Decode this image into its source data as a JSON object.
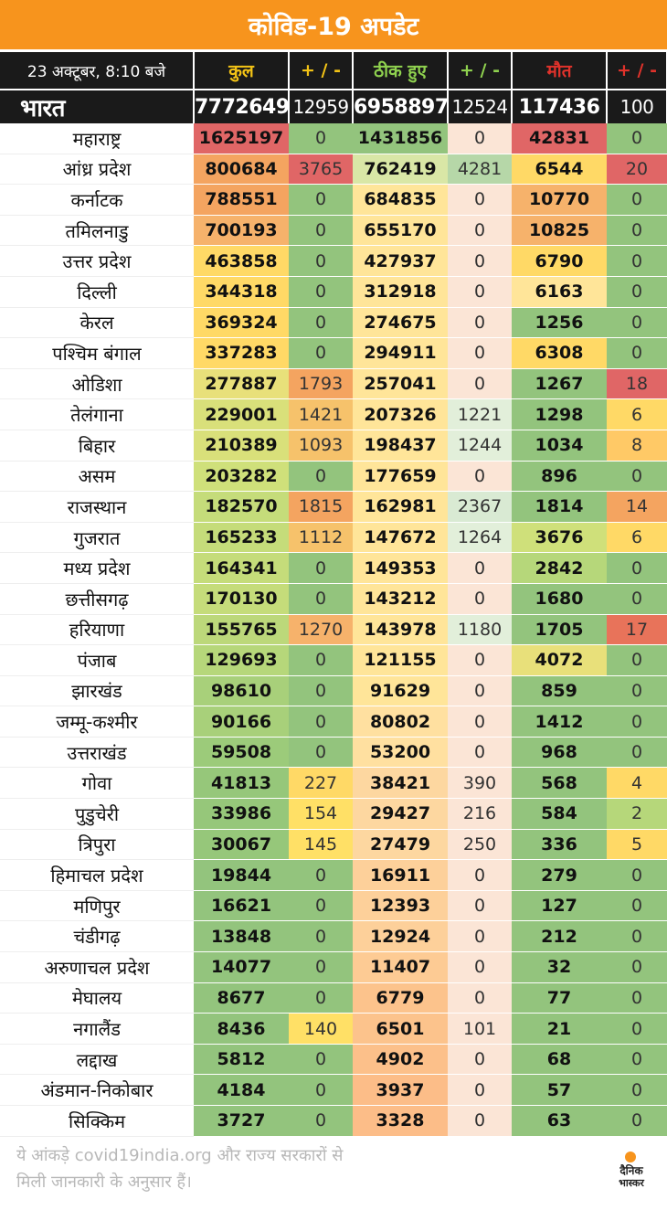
{
  "title": "कोविड-19 अपडेट",
  "header": {
    "date": "23 अक्टूबर, 8:10 बजे",
    "total": "कुल",
    "delta1": "+ / -",
    "recovered": "ठीक हुए",
    "delta2": "+ / -",
    "deaths": "मौत",
    "delta3": "+ / -"
  },
  "india": {
    "name": "भारत",
    "total": "7772649",
    "total_delta": "12959",
    "recovered": "6958897",
    "recovered_delta": "12524",
    "deaths": "117436",
    "deaths_delta": "100"
  },
  "colors": {
    "title_bg": "#f7941d",
    "header_bg": "#1a1a1a",
    "red": "#e06666",
    "orange": "#f4a460",
    "yellow": "#ffd966",
    "light_green": "#c5e0b4",
    "green": "#93c47d",
    "peach": "#fbe5d6"
  },
  "states": [
    {
      "name": "महाराष्ट्र",
      "total": "1625197",
      "total_delta": "0",
      "recovered": "1431856",
      "recovered_delta": "0",
      "deaths": "42831",
      "deaths_delta": "0",
      "c": [
        "#e06666",
        "#93c47d",
        "#93c47d",
        "#fbe5d6",
        "#e06666",
        "#93c47d"
      ]
    },
    {
      "name": "आंध्र प्रदेश",
      "total": "800684",
      "total_delta": "3765",
      "recovered": "762419",
      "recovered_delta": "4281",
      "deaths": "6544",
      "deaths_delta": "20",
      "c": [
        "#f4a460",
        "#e06666",
        "#d9e7a6",
        "#b6d7a8",
        "#ffd966",
        "#e06666"
      ]
    },
    {
      "name": "कर्नाटक",
      "total": "788551",
      "total_delta": "0",
      "recovered": "684835",
      "recovered_delta": "0",
      "deaths": "10770",
      "deaths_delta": "0",
      "c": [
        "#f4a460",
        "#93c47d",
        "#ffe599",
        "#fbe5d6",
        "#f6b26b",
        "#93c47d"
      ]
    },
    {
      "name": "तमिलनाडु",
      "total": "700193",
      "total_delta": "0",
      "recovered": "655170",
      "recovered_delta": "0",
      "deaths": "10825",
      "deaths_delta": "0",
      "c": [
        "#f6b26b",
        "#93c47d",
        "#ffe599",
        "#fbe5d6",
        "#f6b26b",
        "#93c47d"
      ]
    },
    {
      "name": "उत्तर प्रदेश",
      "total": "463858",
      "total_delta": "0",
      "recovered": "427937",
      "recovered_delta": "0",
      "deaths": "6790",
      "deaths_delta": "0",
      "c": [
        "#ffd966",
        "#93c47d",
        "#ffe599",
        "#fbe5d6",
        "#ffd966",
        "#93c47d"
      ]
    },
    {
      "name": "दिल्ली",
      "total": "344318",
      "total_delta": "0",
      "recovered": "312918",
      "recovered_delta": "0",
      "deaths": "6163",
      "deaths_delta": "0",
      "c": [
        "#ffd966",
        "#93c47d",
        "#ffe599",
        "#fbe5d6",
        "#ffe599",
        "#93c47d"
      ]
    },
    {
      "name": "केरल",
      "total": "369324",
      "total_delta": "0",
      "recovered": "274675",
      "recovered_delta": "0",
      "deaths": "1256",
      "deaths_delta": "0",
      "c": [
        "#ffd966",
        "#93c47d",
        "#ffe599",
        "#fbe5d6",
        "#93c47d",
        "#93c47d"
      ]
    },
    {
      "name": "पश्चिम बंगाल",
      "total": "337283",
      "total_delta": "0",
      "recovered": "294911",
      "recovered_delta": "0",
      "deaths": "6308",
      "deaths_delta": "0",
      "c": [
        "#ffd966",
        "#93c47d",
        "#ffe599",
        "#fbe5d6",
        "#ffd966",
        "#93c47d"
      ]
    },
    {
      "name": "ओडिशा",
      "total": "277887",
      "total_delta": "1793",
      "recovered": "257041",
      "recovered_delta": "0",
      "deaths": "1267",
      "deaths_delta": "18",
      "c": [
        "#e8e07a",
        "#f4a460",
        "#ffe599",
        "#fbe5d6",
        "#93c47d",
        "#e06666"
      ]
    },
    {
      "name": "तेलंगाना",
      "total": "229001",
      "total_delta": "1421",
      "recovered": "207326",
      "recovered_delta": "1221",
      "deaths": "1298",
      "deaths_delta": "6",
      "c": [
        "#d9e07a",
        "#f6c26b",
        "#ffe599",
        "#e2efda",
        "#93c47d",
        "#ffd966"
      ]
    },
    {
      "name": "बिहार",
      "total": "210389",
      "total_delta": "1093",
      "recovered": "198437",
      "recovered_delta": "1244",
      "deaths": "1034",
      "deaths_delta": "8",
      "c": [
        "#d9e07a",
        "#f6c26b",
        "#ffe599",
        "#e2efda",
        "#93c47d",
        "#ffc966"
      ]
    },
    {
      "name": "असम",
      "total": "203282",
      "total_delta": "0",
      "recovered": "177659",
      "recovered_delta": "0",
      "deaths": "896",
      "deaths_delta": "0",
      "c": [
        "#cfe07a",
        "#93c47d",
        "#ffe599",
        "#fbe5d6",
        "#93c47d",
        "#93c47d"
      ]
    },
    {
      "name": "राजस्थान",
      "total": "182570",
      "total_delta": "1815",
      "recovered": "162981",
      "recovered_delta": "2367",
      "deaths": "1814",
      "deaths_delta": "14",
      "c": [
        "#c5dc7a",
        "#f4a460",
        "#ffe599",
        "#d9ead3",
        "#93c47d",
        "#f4a460"
      ]
    },
    {
      "name": "गुजरात",
      "total": "165233",
      "total_delta": "1112",
      "recovered": "147672",
      "recovered_delta": "1264",
      "deaths": "3676",
      "deaths_delta": "6",
      "c": [
        "#c5dc7a",
        "#f6c26b",
        "#ffe599",
        "#e2efda",
        "#cfe07a",
        "#ffd966"
      ]
    },
    {
      "name": "मध्य प्रदेश",
      "total": "164341",
      "total_delta": "0",
      "recovered": "149353",
      "recovered_delta": "0",
      "deaths": "2842",
      "deaths_delta": "0",
      "c": [
        "#c5dc7a",
        "#93c47d",
        "#ffe599",
        "#fbe5d6",
        "#b6d77a",
        "#93c47d"
      ]
    },
    {
      "name": "छत्तीसगढ़",
      "total": "170130",
      "total_delta": "0",
      "recovered": "143212",
      "recovered_delta": "0",
      "deaths": "1680",
      "deaths_delta": "0",
      "c": [
        "#c5dc7a",
        "#93c47d",
        "#ffe599",
        "#fbe5d6",
        "#93c47d",
        "#93c47d"
      ]
    },
    {
      "name": "हरियाणा",
      "total": "155765",
      "total_delta": "1270",
      "recovered": "143978",
      "recovered_delta": "1180",
      "deaths": "1705",
      "deaths_delta": "17",
      "c": [
        "#bcd87a",
        "#f6b26b",
        "#ffe599",
        "#e2efda",
        "#93c47d",
        "#e8735a"
      ]
    },
    {
      "name": "पंजाब",
      "total": "129693",
      "total_delta": "0",
      "recovered": "121155",
      "recovered_delta": "0",
      "deaths": "4072",
      "deaths_delta": "0",
      "c": [
        "#b6d77a",
        "#93c47d",
        "#ffe599",
        "#fbe5d6",
        "#e8e07a",
        "#93c47d"
      ]
    },
    {
      "name": "झारखंड",
      "total": "98610",
      "total_delta": "0",
      "recovered": "91629",
      "recovered_delta": "0",
      "deaths": "859",
      "deaths_delta": "0",
      "c": [
        "#a8d07a",
        "#93c47d",
        "#ffe599",
        "#fbe5d6",
        "#93c47d",
        "#93c47d"
      ]
    },
    {
      "name": "जम्मू-कश्मीर",
      "total": "90166",
      "total_delta": "0",
      "recovered": "80802",
      "recovered_delta": "0",
      "deaths": "1412",
      "deaths_delta": "0",
      "c": [
        "#a8d07a",
        "#93c47d",
        "#ffe0a0",
        "#fbe5d6",
        "#93c47d",
        "#93c47d"
      ]
    },
    {
      "name": "उत्तराखंड",
      "total": "59508",
      "total_delta": "0",
      "recovered": "53200",
      "recovered_delta": "0",
      "deaths": "968",
      "deaths_delta": "0",
      "c": [
        "#9ccb7a",
        "#93c47d",
        "#ffe0a0",
        "#fbe5d6",
        "#93c47d",
        "#93c47d"
      ]
    },
    {
      "name": "गोवा",
      "total": "41813",
      "total_delta": "227",
      "recovered": "38421",
      "recovered_delta": "390",
      "deaths": "568",
      "deaths_delta": "4",
      "c": [
        "#96c77a",
        "#ffd966",
        "#fdd7a0",
        "#fbe5d6",
        "#93c47d",
        "#ffd966"
      ]
    },
    {
      "name": "पुडुचेरी",
      "total": "33986",
      "total_delta": "154",
      "recovered": "29427",
      "recovered_delta": "216",
      "deaths": "584",
      "deaths_delta": "2",
      "c": [
        "#96c77a",
        "#ffe066",
        "#fdd7a0",
        "#fbe5d6",
        "#93c47d",
        "#b6d77a"
      ]
    },
    {
      "name": "त्रिपुरा",
      "total": "30067",
      "total_delta": "145",
      "recovered": "27479",
      "recovered_delta": "250",
      "deaths": "336",
      "deaths_delta": "5",
      "c": [
        "#96c77a",
        "#ffe066",
        "#fdd7a0",
        "#fbe5d6",
        "#93c47d",
        "#ffd966"
      ]
    },
    {
      "name": "हिमाचल प्रदेश",
      "total": "19844",
      "total_delta": "0",
      "recovered": "16911",
      "recovered_delta": "0",
      "deaths": "279",
      "deaths_delta": "0",
      "c": [
        "#93c47d",
        "#93c47d",
        "#fdd09a",
        "#fbe5d6",
        "#93c47d",
        "#93c47d"
      ]
    },
    {
      "name": "मणिपुर",
      "total": "16621",
      "total_delta": "0",
      "recovered": "12393",
      "recovered_delta": "0",
      "deaths": "127",
      "deaths_delta": "0",
      "c": [
        "#93c47d",
        "#93c47d",
        "#fdd09a",
        "#fbe5d6",
        "#93c47d",
        "#93c47d"
      ]
    },
    {
      "name": "चंडीगढ़",
      "total": "13848",
      "total_delta": "0",
      "recovered": "12924",
      "recovered_delta": "0",
      "deaths": "212",
      "deaths_delta": "0",
      "c": [
        "#93c47d",
        "#93c47d",
        "#fdd09a",
        "#fbe5d6",
        "#93c47d",
        "#93c47d"
      ]
    },
    {
      "name": "अरुणाचल प्रदेश",
      "total": "14077",
      "total_delta": "0",
      "recovered": "11407",
      "recovered_delta": "0",
      "deaths": "32",
      "deaths_delta": "0",
      "c": [
        "#93c47d",
        "#93c47d",
        "#fdcb94",
        "#fbe5d6",
        "#93c47d",
        "#93c47d"
      ]
    },
    {
      "name": "मेघालय",
      "total": "8677",
      "total_delta": "0",
      "recovered": "6779",
      "recovered_delta": "0",
      "deaths": "77",
      "deaths_delta": "0",
      "c": [
        "#93c47d",
        "#93c47d",
        "#fcc38c",
        "#fbe5d6",
        "#93c47d",
        "#93c47d"
      ]
    },
    {
      "name": "नगालैंड",
      "total": "8436",
      "total_delta": "140",
      "recovered": "6501",
      "recovered_delta": "101",
      "deaths": "21",
      "deaths_delta": "0",
      "c": [
        "#93c47d",
        "#ffe066",
        "#fcc38c",
        "#fbe5d6",
        "#93c47d",
        "#93c47d"
      ]
    },
    {
      "name": "लद्दाख",
      "total": "5812",
      "total_delta": "0",
      "recovered": "4902",
      "recovered_delta": "0",
      "deaths": "68",
      "deaths_delta": "0",
      "c": [
        "#93c47d",
        "#93c47d",
        "#fcc08a",
        "#fbe5d6",
        "#93c47d",
        "#93c47d"
      ]
    },
    {
      "name": "अंडमान-निकोबार",
      "total": "4184",
      "total_delta": "0",
      "recovered": "3937",
      "recovered_delta": "0",
      "deaths": "57",
      "deaths_delta": "0",
      "c": [
        "#93c47d",
        "#93c47d",
        "#fcbd88",
        "#fbe5d6",
        "#93c47d",
        "#93c47d"
      ]
    },
    {
      "name": "सिक्किम",
      "total": "3727",
      "total_delta": "0",
      "recovered": "3328",
      "recovered_delta": "0",
      "deaths": "63",
      "deaths_delta": "0",
      "c": [
        "#93c47d",
        "#93c47d",
        "#fcbd88",
        "#fbe5d6",
        "#93c47d",
        "#93c47d"
      ]
    }
  ],
  "footer": {
    "line1": "ये आंकड़े covid19india.org और राज्य सरकारों से",
    "line2": "मिली जानकारी के अनुसार हैं।",
    "logo_line1": "दैनिक",
    "logo_line2": "भास्कर"
  }
}
